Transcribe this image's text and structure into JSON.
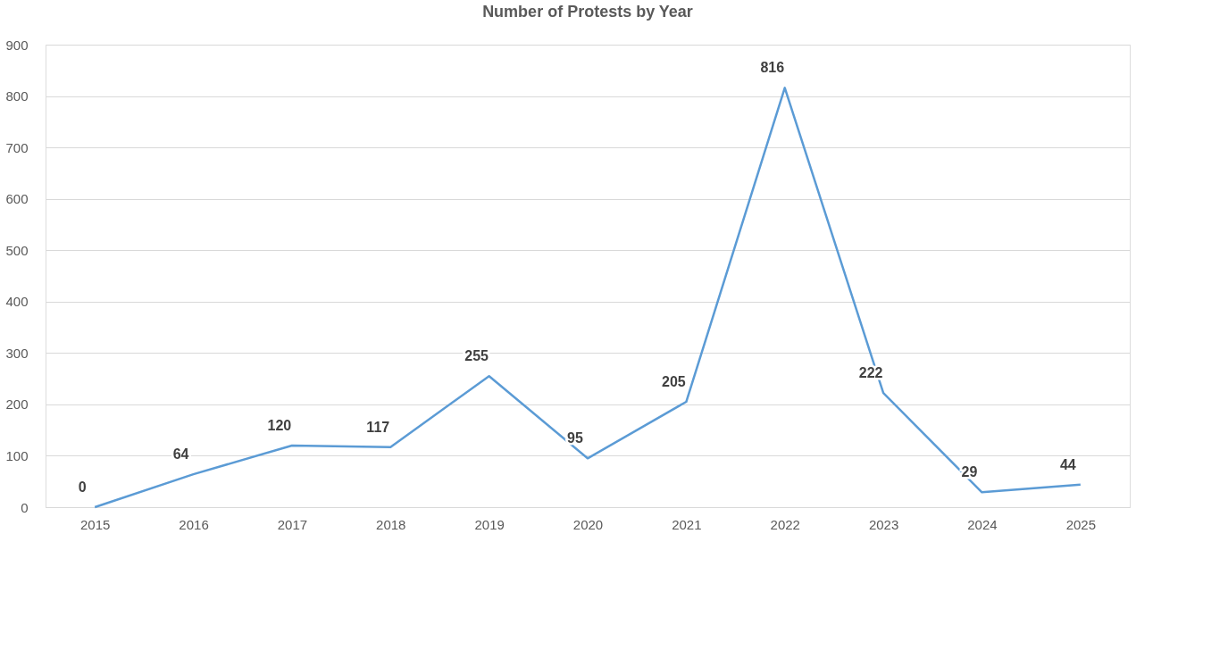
{
  "chart_data": {
    "type": "line",
    "title": "Number of Protests by Year",
    "categories": [
      "2015",
      "2016",
      "2017",
      "2018",
      "2019",
      "2020",
      "2021",
      "2022",
      "2023",
      "2024",
      "2025"
    ],
    "series": [
      {
        "color": "#5b9bd5",
        "values": [
          0,
          64,
          120,
          117,
          255,
          95,
          205,
          816,
          222,
          29,
          44
        ]
      }
    ],
    "ylim": [
      0,
      900
    ],
    "yticks": [
      0,
      100,
      200,
      300,
      400,
      500,
      600,
      700,
      800,
      900
    ],
    "grid": "y",
    "data_labels": true,
    "marker": "none",
    "line_style": "solid"
  }
}
